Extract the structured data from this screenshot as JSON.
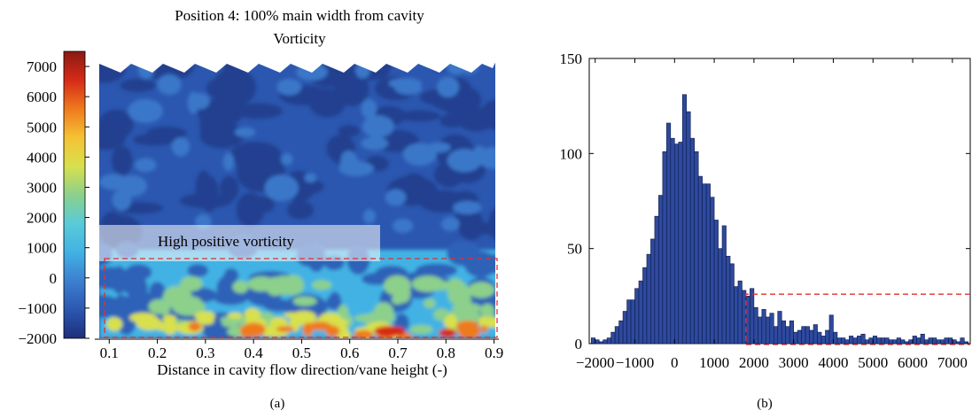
{
  "panels": {
    "a": {
      "label": "(a)"
    },
    "b": {
      "label": "(b)"
    }
  },
  "chart_data": [
    {
      "type": "heatmap",
      "title": "Position 4: 100% main width from cavity",
      "subtitle": "Vorticity",
      "xlabel": "Distance in cavity flow direction/vane height (-)",
      "ylabel": "",
      "xlim": [
        0.07,
        0.91
      ],
      "x_ticks": [
        0.1,
        0.2,
        0.3,
        0.4,
        0.5,
        0.6,
        0.7,
        0.8,
        0.9
      ],
      "x_tick_labels": [
        "0.1",
        "0.2",
        "0.3",
        "0.4",
        "0.5",
        "0.6",
        "0.7",
        "0.8",
        "0.9"
      ],
      "colorbar": {
        "range": [
          -2000,
          7500
        ],
        "ticks": [
          7000,
          6000,
          5000,
          4000,
          3000,
          2000,
          1000,
          0,
          -1000,
          -2000
        ],
        "tick_labels": [
          "7000",
          "6000",
          "5000",
          "4000",
          "3000",
          "2000",
          "1000",
          "0",
          "−1000",
          "−2000"
        ],
        "colormap": [
          "#1f2f7a",
          "#2b57b0",
          "#3c7fcf",
          "#42b2e4",
          "#59cbd8",
          "#8cd08c",
          "#d8e04c",
          "#f5c234",
          "#ee7a1e",
          "#d62a18",
          "#8a1a14"
        ]
      },
      "annotations": [
        {
          "text": "High positive vorticity"
        }
      ],
      "highlight": {
        "x_range": [
          0.08,
          0.91
        ],
        "value_range": [
          -2000,
          600
        ],
        "style": "dashed",
        "color": "#e03030"
      }
    },
    {
      "type": "bar",
      "title": "",
      "xlabel": "",
      "ylabel": "",
      "xlim": [
        -2150,
        7450
      ],
      "ylim": [
        0,
        150
      ],
      "bin_width": 100,
      "x_ticks": [
        -2000,
        -1000,
        0,
        1000,
        2000,
        3000,
        4000,
        5000,
        6000,
        7000
      ],
      "x_tick_labels": [
        "−2000",
        "−1000",
        "0",
        "1000",
        "2000",
        "3000",
        "4000",
        "5000",
        "6000",
        "7000"
      ],
      "y_ticks": [
        0,
        50,
        100,
        150
      ],
      "y_tick_labels": [
        "0",
        "50",
        "100",
        "150"
      ],
      "bar_color": "#2e4a9e",
      "bin_centers": [
        -2050,
        -1950,
        -1850,
        -1750,
        -1650,
        -1550,
        -1450,
        -1350,
        -1250,
        -1150,
        -1050,
        -950,
        -850,
        -750,
        -650,
        -550,
        -450,
        -350,
        -250,
        -150,
        -50,
        50,
        150,
        250,
        350,
        450,
        550,
        650,
        750,
        850,
        950,
        1050,
        1150,
        1250,
        1350,
        1450,
        1550,
        1650,
        1750,
        1850,
        1950,
        2050,
        2150,
        2250,
        2350,
        2450,
        2550,
        2650,
        2750,
        2850,
        2950,
        3050,
        3150,
        3250,
        3350,
        3450,
        3550,
        3650,
        3750,
        3850,
        3950,
        4050,
        4150,
        4250,
        4350,
        4450,
        4550,
        4650,
        4750,
        4850,
        4950,
        5050,
        5150,
        5250,
        5350,
        5450,
        5550,
        5650,
        5750,
        5850,
        5950,
        6050,
        6150,
        6250,
        6350,
        6450,
        6550,
        6650,
        6750,
        6850,
        6950,
        7050,
        7150,
        7250,
        7350
      ],
      "counts": [
        3,
        2,
        1,
        2,
        3,
        6,
        9,
        12,
        17,
        23,
        23,
        29,
        33,
        40,
        47,
        55,
        67,
        78,
        101,
        116,
        108,
        105,
        106,
        131,
        122,
        108,
        101,
        88,
        84,
        84,
        77,
        65,
        50,
        62,
        46,
        42,
        30,
        33,
        28,
        25,
        29,
        19,
        14,
        18,
        14,
        16,
        9,
        17,
        12,
        9,
        12,
        6,
        7,
        9,
        9,
        7,
        10,
        6,
        4,
        7,
        15,
        6,
        3,
        3,
        2,
        4,
        3,
        4,
        5,
        2,
        3,
        4,
        3,
        3,
        3,
        2,
        2,
        3,
        2,
        1,
        2,
        4,
        3,
        5,
        2,
        3,
        3,
        2,
        2,
        3,
        3,
        2,
        1,
        3,
        1
      ],
      "highlight": {
        "x_range": [
          1800,
          7450
        ],
        "y_range": [
          0,
          26
        ],
        "style": "dashed",
        "color": "#e03030"
      }
    }
  ]
}
